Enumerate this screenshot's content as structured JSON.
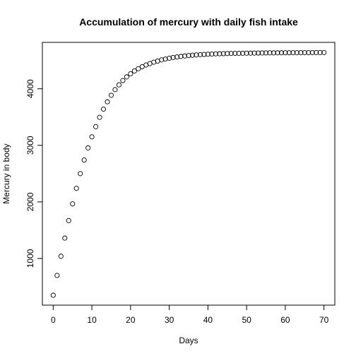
{
  "chart_data": {
    "type": "scatter",
    "title": "Accumulation of mercury with daily fish intake",
    "xlabel": "Days",
    "ylabel": "Mercury in body",
    "xlim": [
      -2.8,
      72.8
    ],
    "ylim": [
      175,
      4820
    ],
    "x_ticks": [
      0,
      10,
      20,
      30,
      40,
      50,
      60,
      70
    ],
    "x_tick_labels": [
      "0",
      "10",
      "20",
      "30",
      "40",
      "50",
      "60",
      "70"
    ],
    "y_ticks": [
      1000,
      2000,
      3000,
      4000
    ],
    "y_tick_labels": [
      "1000",
      "2000",
      "3000",
      "4000"
    ],
    "grid": false,
    "legend": "none",
    "marker": "open-circle",
    "point_color": "#000000",
    "series": [
      {
        "x": [
          0,
          1,
          2,
          3,
          4,
          5,
          6,
          7,
          8,
          9,
          10,
          11,
          12,
          13,
          14,
          15,
          16,
          17,
          18,
          19,
          20,
          21,
          22,
          23,
          24,
          25,
          26,
          27,
          28,
          29,
          30,
          31,
          32,
          33,
          34,
          35,
          36,
          37,
          38,
          39,
          40,
          41,
          42,
          43,
          44,
          45,
          46,
          47,
          48,
          49,
          50,
          51,
          52,
          53,
          54,
          55,
          56,
          57,
          58,
          59,
          60,
          61,
          62,
          63,
          64,
          65,
          66,
          67,
          68,
          69,
          70
        ],
        "y": [
          350,
          700,
          1040,
          1360,
          1670,
          1965,
          2240,
          2500,
          2740,
          2955,
          3150,
          3330,
          3495,
          3640,
          3770,
          3885,
          3985,
          4070,
          4145,
          4210,
          4265,
          4315,
          4355,
          4390,
          4420,
          4445,
          4470,
          4490,
          4510,
          4525,
          4540,
          4553,
          4563,
          4572,
          4580,
          4587,
          4593,
          4598,
          4603,
          4607,
          4611,
          4614,
          4617,
          4619,
          4621,
          4623,
          4625,
          4626,
          4627,
          4628,
          4629,
          4630,
          4631,
          4632,
          4633,
          4634,
          4635,
          4635,
          4636,
          4636,
          4637,
          4637,
          4638,
          4638,
          4638,
          4639,
          4639,
          4639,
          4640,
          4640,
          4640
        ]
      }
    ]
  }
}
